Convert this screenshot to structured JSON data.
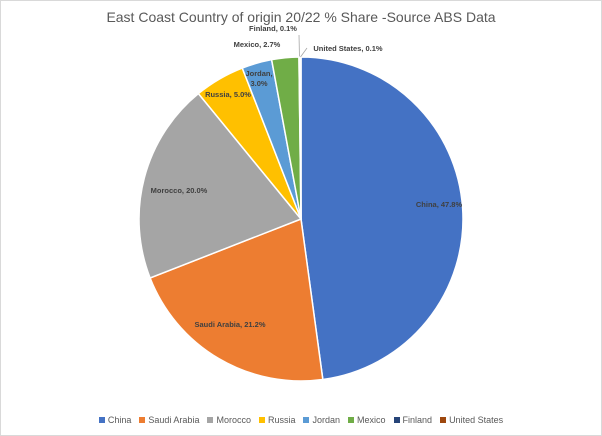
{
  "chart_data": {
    "type": "pie",
    "title": "East Coast Country of origin 20/22 % Share -Source ABS Data",
    "slices": [
      {
        "label": "China",
        "value": 47.8,
        "text": "China, 47.8%",
        "color": "#4472C4"
      },
      {
        "label": "Saudi Arabia",
        "value": 21.2,
        "text": "Saudi Arabia, 21.2%",
        "color": "#ED7D31"
      },
      {
        "label": "Morocco",
        "value": 20.0,
        "text": "Morocco, 20.0%",
        "color": "#A5A5A5"
      },
      {
        "label": "Russia",
        "value": 5.0,
        "text": "Russia, 5.0%",
        "color": "#FFC000"
      },
      {
        "label": "Jordan",
        "value": 3.0,
        "text": "Jordan, 3.0%",
        "color": "#5B9BD5"
      },
      {
        "label": "Mexico",
        "value": 2.7,
        "text": "Mexico, 2.7%",
        "color": "#70AD47"
      },
      {
        "label": "Finland",
        "value": 0.1,
        "text": "Finland, 0.1%",
        "color": "#264478"
      },
      {
        "label": "United States",
        "value": 0.1,
        "text": "United States, 0.1%",
        "color": "#9E480E"
      }
    ],
    "legend_position": "bottom"
  }
}
